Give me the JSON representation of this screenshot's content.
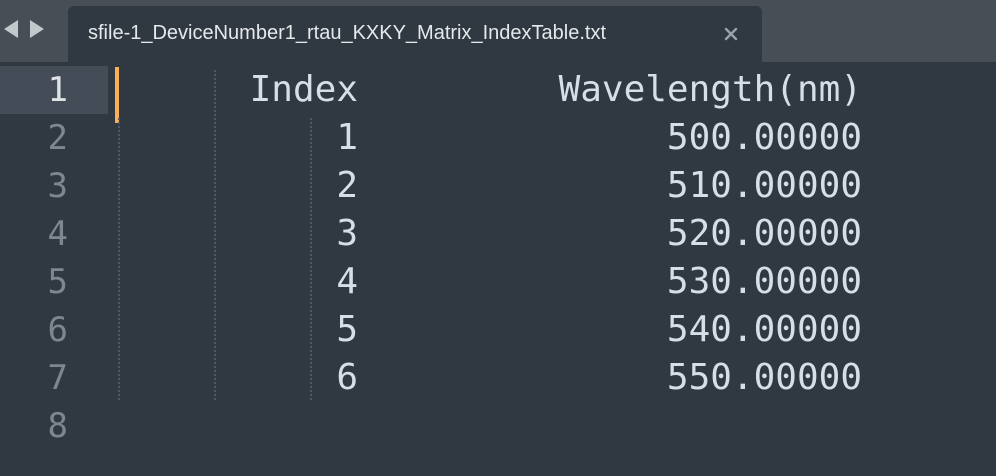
{
  "tab": {
    "title": "sfile-1_DeviceNumber1_rtau_KXKY_Matrix_IndexTable.txt"
  },
  "icons": {
    "back": "chevron-left-icon",
    "forward": "chevron-right-icon",
    "close": "close-icon"
  },
  "colors": {
    "background": "#303841",
    "tabbar": "#474e56",
    "active_gutter": "#434c57",
    "caret": "#f9ae58",
    "text": "#d8dee9",
    "line_number": "#7e8690"
  },
  "editor": {
    "line_numbers": [
      "1",
      "2",
      "3",
      "4",
      "5",
      "6",
      "7",
      "8"
    ],
    "active_line": 1,
    "lines": [
      {
        "index": "Index",
        "wavelength": "Wavelength(nm)"
      },
      {
        "index": "1",
        "wavelength": "500.00000"
      },
      {
        "index": "2",
        "wavelength": "510.00000"
      },
      {
        "index": "3",
        "wavelength": "520.00000"
      },
      {
        "index": "4",
        "wavelength": "530.00000"
      },
      {
        "index": "5",
        "wavelength": "540.00000"
      },
      {
        "index": "6",
        "wavelength": "550.00000"
      },
      {
        "index": "",
        "wavelength": ""
      }
    ]
  }
}
